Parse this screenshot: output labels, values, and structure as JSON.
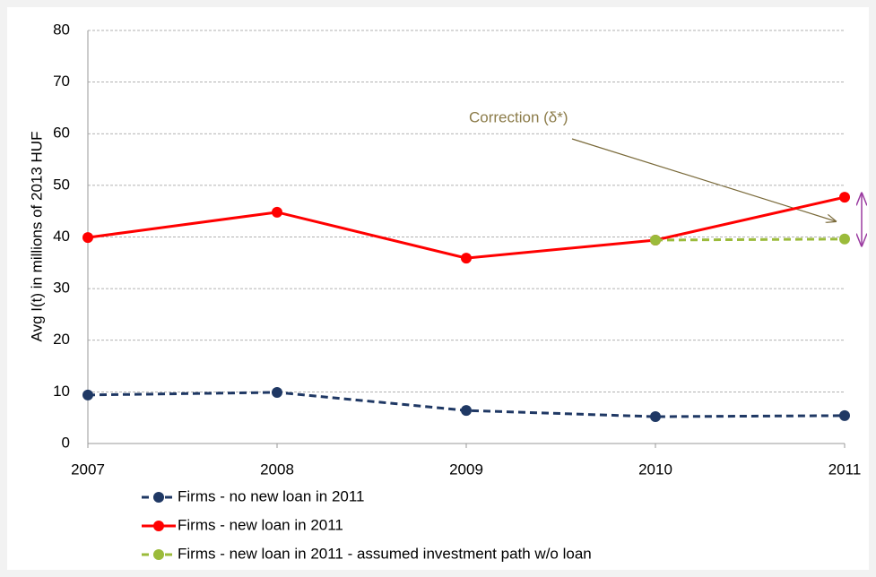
{
  "chart_data": {
    "type": "line",
    "y_label": "Avg I(t) in millions of 2013 HUF",
    "annotation": "Correction (δ*)",
    "categories": [
      "2007",
      "2008",
      "2009",
      "2010",
      "2011"
    ],
    "series": [
      {
        "name": "Firms -  no new loan in 2011",
        "color": "#1f3864",
        "dashed": true,
        "values": [
          9.4,
          9.9,
          6.4,
          5.2,
          5.4
        ]
      },
      {
        "name": "Firms - new loan in 2011",
        "color": "#ff0000",
        "dashed": false,
        "values": [
          39.9,
          44.8,
          35.9,
          39.4,
          47.7
        ]
      },
      {
        "name": "Firms - new loan in 2011 - assumed investment path w/o loan",
        "color": "#9bbb3b",
        "dashed": true,
        "values": [
          null,
          null,
          null,
          39.4,
          39.6
        ]
      }
    ],
    "ylim": [
      0,
      80
    ],
    "yticks": [
      0,
      10,
      20,
      30,
      40,
      50,
      60,
      70,
      80
    ],
    "grid": true
  }
}
